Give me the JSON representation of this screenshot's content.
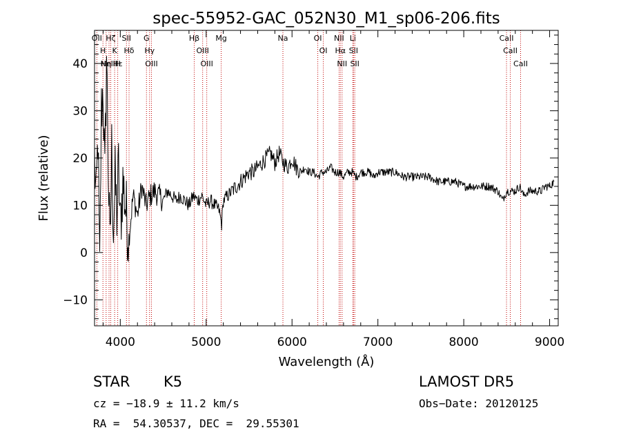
{
  "chart_data": {
    "type": "line",
    "title": "spec-55952-GAC_052N30_M1_sp06-206.fits",
    "xlabel": "Wavelength (Å)",
    "ylabel": "Flux (relative)",
    "xlim": [
      3700,
      9100
    ],
    "ylim": [
      -15.5,
      47
    ],
    "xticks": [
      4000,
      5000,
      6000,
      7000,
      8000,
      9000
    ],
    "yticks": [
      -10,
      0,
      10,
      20,
      30,
      40
    ],
    "grid": false,
    "series": [
      {
        "x": [
          3700,
          3720,
          3740,
          3760,
          3780,
          3800,
          3820,
          3840,
          3860,
          3880,
          3900,
          3920,
          3940,
          3960,
          3980,
          4000,
          4030,
          4060,
          4100,
          4150,
          4200,
          4250,
          4300,
          4350,
          4400,
          4450,
          4500,
          4550,
          4600,
          4650,
          4700,
          4750,
          4800,
          4850,
          4900,
          4950,
          5000,
          5050,
          5100,
          5150,
          5180,
          5200,
          5250,
          5300,
          5350,
          5400,
          5450,
          5500,
          5550,
          5600,
          5650,
          5700,
          5750,
          5800,
          5850,
          5900,
          5950,
          6000,
          6050,
          6100,
          6150,
          6200,
          6250,
          6300,
          6350,
          6400,
          6450,
          6500,
          6550,
          6600,
          6650,
          6700,
          6750,
          6800,
          6850,
          6900,
          6950,
          7000,
          7100,
          7200,
          7300,
          7400,
          7500,
          7600,
          7700,
          7800,
          7900,
          8000,
          8100,
          8200,
          8300,
          8400,
          8450,
          8500,
          8550,
          8600,
          8650,
          8700,
          8750,
          8800,
          8850,
          8900,
          8950,
          9000,
          9050
        ],
        "y": [
          20,
          10,
          25,
          -5,
          30,
          35,
          15,
          42,
          18,
          0,
          22,
          5,
          15,
          8,
          18,
          5,
          15,
          10,
          3,
          12,
          8,
          14,
          10,
          12,
          13,
          12,
          11,
          13,
          12,
          11,
          12,
          11,
          10,
          12,
          11,
          12,
          10,
          11,
          10,
          9,
          6,
          11,
          12,
          13,
          14,
          15,
          16,
          17,
          17,
          18,
          19,
          20,
          21,
          19,
          21,
          19,
          18,
          20,
          18,
          17,
          18,
          17,
          17,
          16,
          17,
          17,
          18,
          17,
          17,
          16,
          17,
          17,
          16,
          17,
          17,
          17,
          16,
          17,
          17,
          17,
          16,
          16,
          16,
          16,
          15,
          15,
          15,
          14,
          14,
          14,
          14,
          13,
          11,
          13,
          13,
          13,
          14,
          12,
          13,
          13,
          13,
          13,
          14,
          14,
          15
        ]
      }
    ],
    "lines": [
      {
        "x": 3727,
        "labels": [
          "OII"
        ]
      },
      {
        "x": 3798,
        "labels": [
          "H"
        ]
      },
      {
        "x": 3835,
        "labels": [
          "Hη"
        ]
      },
      {
        "x": 3869,
        "labels": [
          "NeIII"
        ]
      },
      {
        "x": 3889,
        "labels": [
          "Hζ"
        ]
      },
      {
        "x": 3934,
        "labels": [
          "K"
        ]
      },
      {
        "x": 3970,
        "labels": [
          "H",
          "Hε"
        ]
      },
      {
        "x": 4072,
        "labels": [
          "SII"
        ]
      },
      {
        "x": 4102,
        "labels": [
          "Hδ"
        ]
      },
      {
        "x": 4305,
        "labels": [
          "G"
        ]
      },
      {
        "x": 4341,
        "labels": [
          "Hγ"
        ]
      },
      {
        "x": 4363,
        "labels": [
          "OIII"
        ]
      },
      {
        "x": 4861,
        "labels": [
          "Hβ"
        ]
      },
      {
        "x": 4959,
        "labels": [
          "OIII"
        ]
      },
      {
        "x": 5007,
        "labels": [
          "OIII"
        ]
      },
      {
        "x": 5175,
        "labels": [
          "Mg"
        ]
      },
      {
        "x": 5894,
        "labels": [
          "Na"
        ]
      },
      {
        "x": 6300,
        "labels": [
          "OI"
        ]
      },
      {
        "x": 6364,
        "labels": [
          "OI"
        ]
      },
      {
        "x": 6548,
        "labels": [
          "NII"
        ]
      },
      {
        "x": 6563,
        "labels": [
          "Hα"
        ]
      },
      {
        "x": 6583,
        "labels": [
          "NII"
        ]
      },
      {
        "x": 6708,
        "labels": [
          "Li"
        ]
      },
      {
        "x": 6716,
        "labels": [
          "SII"
        ]
      },
      {
        "x": 6731,
        "labels": [
          "SII"
        ]
      },
      {
        "x": 8498,
        "labels": [
          "CaII"
        ]
      },
      {
        "x": 8542,
        "labels": [
          "CaII"
        ]
      },
      {
        "x": 8662,
        "labels": [
          "CaII"
        ]
      }
    ]
  },
  "info": {
    "class": "STAR",
    "subclass": "K5",
    "survey": "LAMOST DR5",
    "cz": "cz = −18.9 ± 11.2 km/s",
    "obs_date": "Obs−Date: 20120125",
    "radec": "RA =  54.30537, DEC =  29.55301"
  }
}
